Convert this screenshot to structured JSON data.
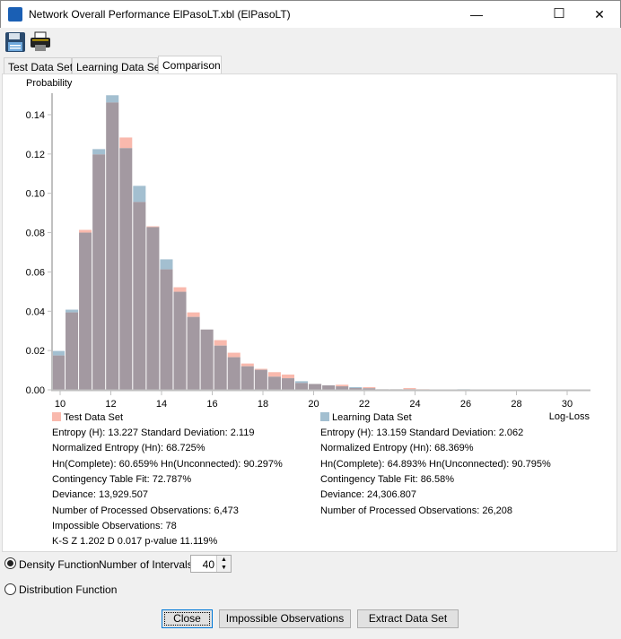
{
  "window": {
    "title": "Network Overall Performance ElPasoLT.xbl (ElPasoLT)",
    "minimize": "—",
    "maximize": "☐",
    "close": "✕"
  },
  "toolbar": {
    "icons": [
      "save-icon",
      "print-icon"
    ]
  },
  "tabs": [
    {
      "label": "Test Data Set"
    },
    {
      "label": "Learning Data Set"
    },
    {
      "label": "Comparison",
      "active": true
    }
  ],
  "chart_data": {
    "type": "bar",
    "ylabel": "Probability",
    "xlabel": "Log-Loss",
    "xlim": [
      9.68,
      31.0
    ],
    "ylim": [
      0,
      0.15
    ],
    "bin_start": 9.68,
    "bin_width": 0.533,
    "xticks": [
      10,
      12,
      14,
      16,
      18,
      20,
      22,
      24,
      26,
      28,
      30
    ],
    "yticks": [
      "0.00",
      "0.02",
      "0.04",
      "0.06",
      "0.08",
      "0.10",
      "0.12",
      "0.14"
    ],
    "overlap_color": "#a399a1",
    "series": [
      {
        "name": "Test Data Set",
        "color": "#f9b9ad",
        "values": [
          0.0175,
          0.0394,
          0.0814,
          0.1198,
          0.1462,
          0.1284,
          0.0956,
          0.0832,
          0.0613,
          0.0522,
          0.0394,
          0.0307,
          0.0253,
          0.0189,
          0.0134,
          0.0107,
          0.009,
          0.0078,
          0.0035,
          0.003,
          0.0023,
          0.0026,
          0.0009,
          0.0014,
          0.0003,
          0.0003,
          0.0009,
          0.0003,
          0.0001,
          0.0001,
          0,
          0,
          0,
          0,
          0,
          0,
          0,
          0,
          0,
          0
        ]
      },
      {
        "name": "Learning Data Set",
        "color": "#a3bfd0",
        "values": [
          0.0198,
          0.0408,
          0.08,
          0.1225,
          0.1499,
          0.123,
          0.1038,
          0.0828,
          0.0664,
          0.0499,
          0.0371,
          0.0307,
          0.0225,
          0.0166,
          0.012,
          0.0102,
          0.0067,
          0.0059,
          0.0044,
          0.003,
          0.0023,
          0.0018,
          0.0014,
          0.0008,
          0.0003,
          0.0003,
          0.0003,
          0.0001,
          0.0001,
          0.0001,
          0.0003,
          0,
          0,
          0,
          0,
          0,
          0,
          0,
          0,
          0
        ]
      }
    ]
  },
  "stats": {
    "test": [
      "Entropy (H): 13.227 Standard Deviation: 2.119",
      "Normalized Entropy (Hn): 68.725%",
      "Hn(Complete): 60.659% Hn(Unconnected): 90.297%",
      "Contingency Table Fit: 72.787%",
      "Deviance: 13,929.507",
      "Number of Processed Observations: 6,473",
      "Impossible Observations: 78",
      "K-S  Z 1.202  D 0.017  p-value 11.119%"
    ],
    "learning": [
      "Entropy (H): 13.159 Standard Deviation: 2.062",
      "Normalized Entropy (Hn): 68.369%",
      "Hn(Complete): 64.893% Hn(Unconnected): 90.795%",
      "Contingency Table Fit: 86.58%",
      "Deviance: 24,306.807",
      "Number of Processed Observations: 26,208"
    ]
  },
  "controls": {
    "density_label": "Density Function",
    "density_selected": true,
    "distribution_label": "Distribution Function",
    "distribution_selected": false,
    "intervals_label": "Number of Intervals",
    "intervals_value": "40",
    "spin_up": "▲",
    "spin_down": "▼"
  },
  "buttons": {
    "close": "Close",
    "impossible": "Impossible Observations",
    "extract": "Extract Data Set"
  }
}
